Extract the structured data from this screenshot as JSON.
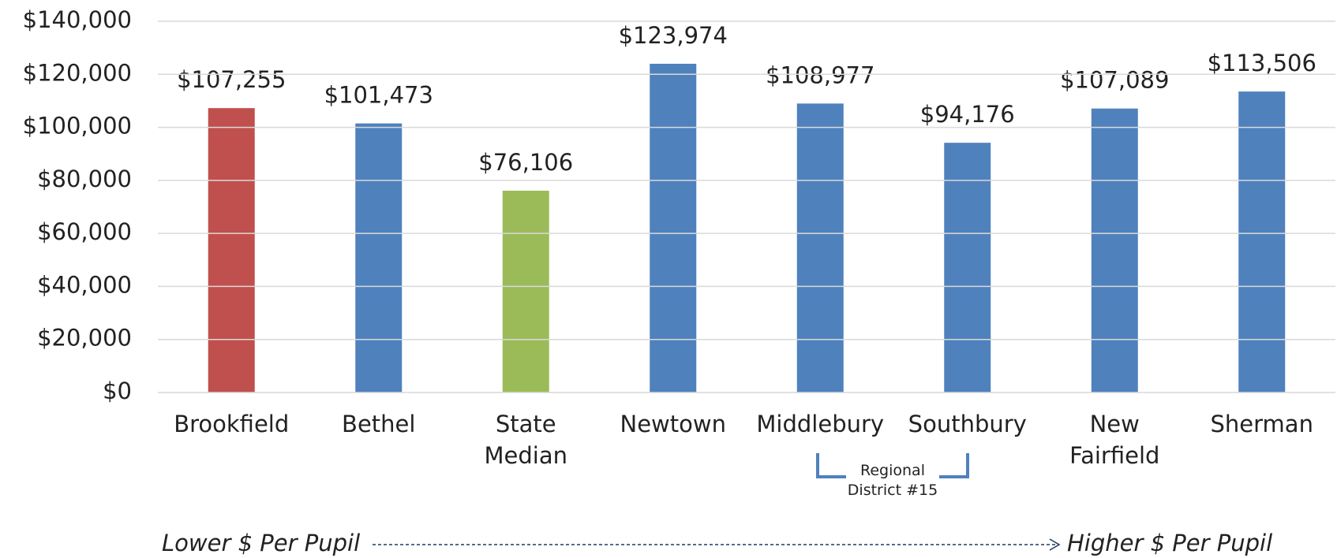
{
  "chart_data": {
    "type": "bar",
    "categories": [
      "Brookfield",
      "Bethel",
      "State\nMedian",
      "Newtown",
      "Middlebury",
      "Southbury",
      "New\nFairfield",
      "Sherman"
    ],
    "values": [
      107255,
      101473,
      76106,
      123974,
      108977,
      94176,
      107089,
      113506
    ],
    "value_labels": [
      "$107,255",
      "$101,473",
      "$76,106",
      "$123,974",
      "$108,977",
      "$94,176",
      "$107,089",
      "$113,506"
    ],
    "colors": [
      "#c0504d",
      "#4f81bd",
      "#9bbb59",
      "#4f81bd",
      "#4f81bd",
      "#4f81bd",
      "#4f81bd",
      "#4f81bd"
    ],
    "ylim": [
      0,
      140000
    ],
    "yticks": [
      {
        "value": 0,
        "label": "$0"
      },
      {
        "value": 20000,
        "label": "$20,000"
      },
      {
        "value": 40000,
        "label": "$40,000"
      },
      {
        "value": 60000,
        "label": "$60,000"
      },
      {
        "value": 80000,
        "label": "$80,000"
      },
      {
        "value": 100000,
        "label": "$100,000"
      },
      {
        "value": 120000,
        "label": "$120,000"
      },
      {
        "value": 140000,
        "label": "$140,000"
      }
    ],
    "grid": true,
    "annotations": {
      "group": "Regional\nDistrict #15",
      "left": "Lower $ Per Pupil",
      "right": "Higher $ Per Pupil"
    }
  }
}
